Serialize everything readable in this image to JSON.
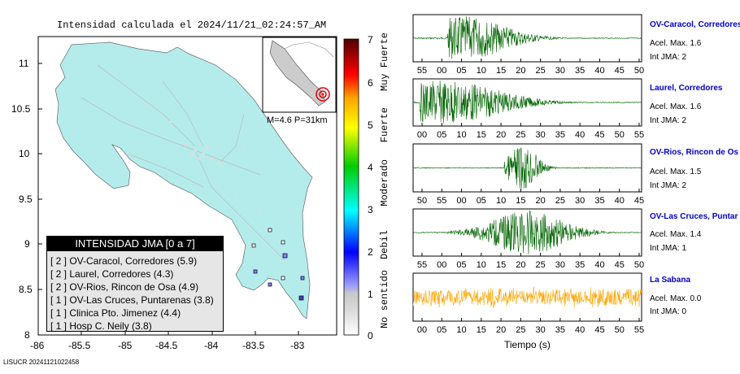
{
  "title": "Intensidad calculada el 2024/11/21_02:24:57_AM",
  "map": {
    "y_ticks": [
      "11",
      "10.5",
      "10",
      "9.5",
      "9",
      "8.5",
      "8"
    ],
    "x_ticks": [
      "-86",
      "-85.5",
      "-85",
      "-84.5",
      "-84",
      "-83.5",
      "-83"
    ],
    "land_color": "#b4ecec",
    "sea_color": "#ffffff",
    "inset_label": "M=4.6 P=31km"
  },
  "legend": {
    "header": "INTENSIDAD JMA [0 a 7]",
    "items": [
      "[ 2 ]  OV-Caracol, Corredores (5.9)",
      "[ 2 ]  Laurel, Corredores (4.3)",
      "[ 2 ]  OV-Rios, Rincon de Osa (4.9)",
      "[ 1 ]  OV-Las Cruces, Puntarenas (3.8)",
      "[ 1 ]  Clinica Pto. Jimenez (4.4)",
      "[ 1 ]  Hosp C. Neily (3.8)"
    ]
  },
  "scale": {
    "numbers": [
      "7",
      "6",
      "5",
      "4",
      "3",
      "2",
      "1",
      "0"
    ],
    "labels": [
      "Muy Fuerte",
      "Fuerte",
      "Moderado",
      "Debil",
      "No sentido"
    ]
  },
  "stations": [
    {
      "name": "OV-Caracol, Corredores",
      "acel": "Acel. Max. 1.6",
      "int": "Int JMA: 2",
      "color": "#006400",
      "ticks": [
        "55",
        "00",
        "05",
        "10",
        "15",
        "20",
        "25",
        "30",
        "35",
        "40",
        "45",
        "50"
      ]
    },
    {
      "name": "Laurel, Corredores",
      "acel": "Acel. Max. 1.6",
      "int": "Int JMA: 2",
      "color": "#006400",
      "ticks": [
        "00",
        "05",
        "10",
        "15",
        "20",
        "25",
        "30",
        "35",
        "40",
        "45",
        "50",
        "55"
      ]
    },
    {
      "name": "OV-Rios, Rincon de Os",
      "acel": "Acel. Max. 1.5",
      "int": "Int JMA: 2",
      "color": "#006400",
      "ticks": [
        "50",
        "55",
        "00",
        "05",
        "10",
        "15",
        "20",
        "25",
        "30",
        "35",
        "40",
        "45"
      ]
    },
    {
      "name": "OV-Las Cruces, Puntar",
      "acel": "Acel. Max. 1.4",
      "int": "Int JMA: 1",
      "color": "#006400",
      "ticks": [
        "55",
        "00",
        "05",
        "10",
        "15",
        "20",
        "25",
        "30",
        "35",
        "40",
        "45",
        "50"
      ]
    },
    {
      "name": "La Sabana",
      "acel": "Acel. Max. 0.0",
      "int": "Int JMA: 0",
      "color": "#ffa500",
      "ticks": [
        "00",
        "05",
        "10",
        "15",
        "20",
        "25",
        "30",
        "35",
        "40",
        "45",
        "50",
        "55"
      ]
    }
  ],
  "x_axis_label": "Tiempo (s)",
  "footer": "LISUCR 20241121022458"
}
